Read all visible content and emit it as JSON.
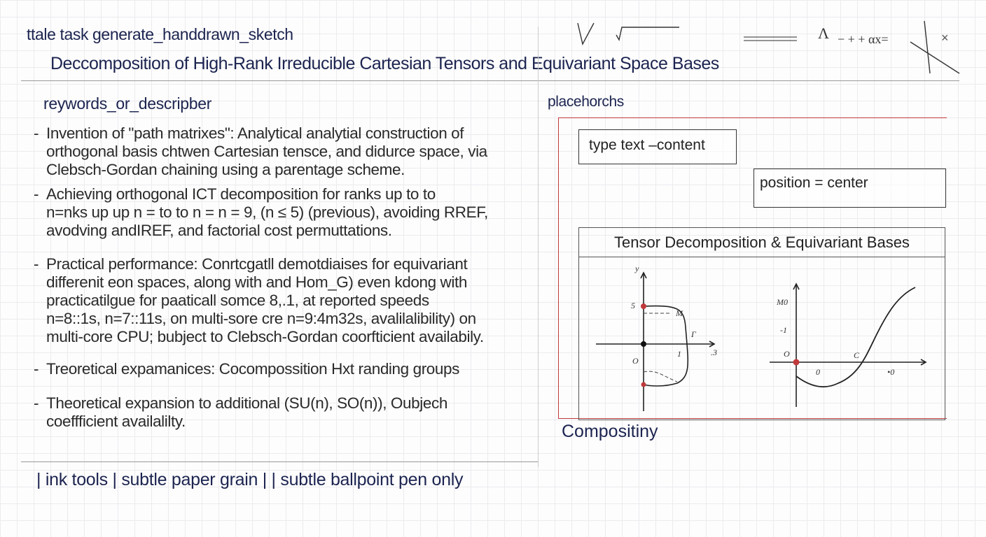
{
  "header": {
    "task_line": "ttale task generate_handdrawn_sketch",
    "title": "Deccomposition of High-Rank Irreducible Cartesian Tensors and Equivariant Space Bases",
    "doodles": "√θ   Λ/χ'  − + + αx =   ×"
  },
  "left": {
    "heading": "reywords_or_descripber",
    "bullets": [
      [
        "Invention of \"path matrixes\": Analytical analytial construction of",
        "orthogonal basis chtwen Cartesian tensce, and didurce space, via",
        "Clebsch-Gordan chaining using a parentage scheme."
      ],
      [
        "Achieving orthogonal ICT decomposition for ranks up to to",
        "n=nks up up n = to to n = n = 9, (n ≤ 5) (previous), avoiding RREF,",
        "avodving andIREF, and factorial cost permuttations."
      ],
      [
        "Practical performance: Conrtcgatll demotdiaises for equivariant",
        "differenit eon spaces, along with  and Hom_G) even kdong with",
        "practicatilgue for paaticall somce 8,.1, at reported speeds",
        "n=8::1s, n=7::11s, on multi-sore  cre n=9:4m32s, avalilalibility) on",
        "multi-core CPU; bubject to Clebsch-Gordan coorfticient availabily."
      ],
      [
        "Treoretical expamanices: Cocompossition Hxt randing  groups"
      ],
      [
        "Theoretical expansion to additional (SU(n), SO(n)), Oubjech",
        "coeffficient availalilty."
      ]
    ]
  },
  "footer": "| ink tools | subtle paper grain | | subtle ballpoint pen only",
  "right": {
    "placeholder_label": "placehorchs",
    "type_box": "type  text –content",
    "position_box": "position  =  center",
    "chart_title": "Tensor Decomposition & Equivariant Bases",
    "caption": "Compositiny",
    "left_plot_labels": {
      "y": "y",
      "tick5": "5",
      "M": "M",
      "Gamma": "Γ",
      "one": "1",
      "x3": ".3",
      "O": "O"
    },
    "right_plot_labels": {
      "M0": "M0",
      "neg1": "-1",
      "O": "O",
      "zero": "0",
      "C": "C",
      "dot0": "•0"
    }
  },
  "colors": {
    "ink": "#1c2450",
    "accent_red": "#c0393b"
  }
}
